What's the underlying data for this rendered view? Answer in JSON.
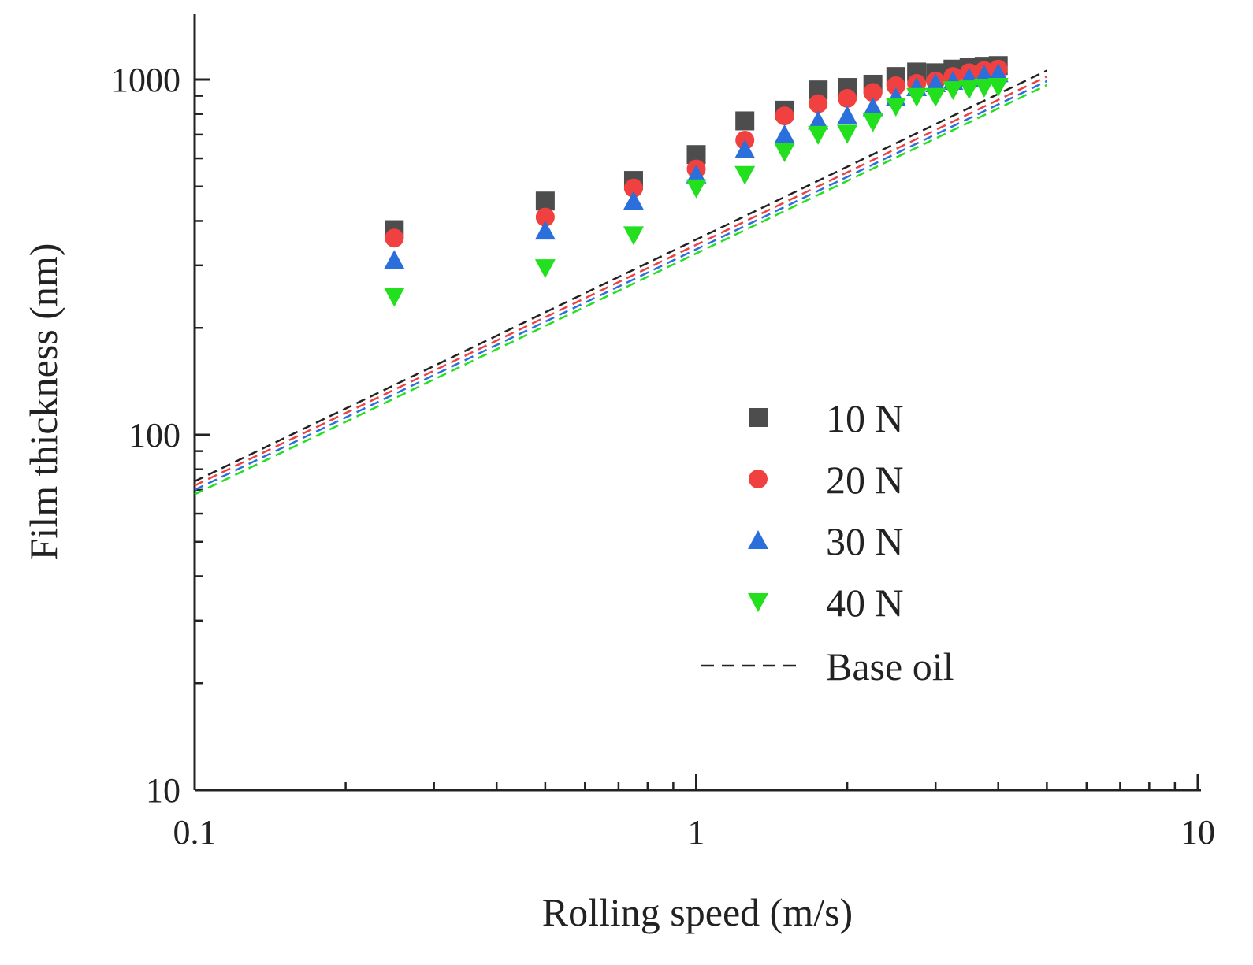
{
  "chart_data": {
    "type": "scatter",
    "xscale": "log",
    "yscale": "log",
    "xlabel": "Rolling speed (m/s)",
    "ylabel": "Film thickness (nm)",
    "xlim": [
      0.1,
      10
    ],
    "ylim": [
      10,
      1600
    ],
    "xticks": [
      {
        "value": 0.1,
        "label": "0.1"
      },
      {
        "value": 1,
        "label": "1"
      },
      {
        "value": 10,
        "label": "10"
      }
    ],
    "yticks": [
      {
        "value": 10,
        "label": "10"
      },
      {
        "value": 100,
        "label": "100"
      },
      {
        "value": 1000,
        "label": "1000"
      }
    ],
    "legend_position": "center-right",
    "series": [
      {
        "name": "10 N",
        "marker": "square",
        "color": "#4d4d4d",
        "x": [
          0.25,
          0.5,
          0.75,
          1.0,
          1.25,
          1.5,
          1.75,
          2.0,
          2.25,
          2.5,
          2.75,
          3.0,
          3.25,
          3.5,
          3.75,
          4.0
        ],
        "y": [
          378,
          455,
          520,
          615,
          765,
          820,
          935,
          950,
          970,
          1020,
          1050,
          1045,
          1070,
          1080,
          1090,
          1095
        ]
      },
      {
        "name": "20 N",
        "marker": "circle",
        "color": "#f04040",
        "x": [
          0.25,
          0.5,
          0.75,
          1.0,
          1.25,
          1.5,
          1.75,
          2.0,
          2.25,
          2.5,
          2.75,
          3.0,
          3.25,
          3.5,
          3.75,
          4.0
        ],
        "y": [
          358,
          410,
          495,
          560,
          675,
          790,
          855,
          885,
          920,
          960,
          975,
          990,
          1020,
          1045,
          1060,
          1070
        ]
      },
      {
        "name": "30 N",
        "marker": "triangle-up",
        "color": "#2a6fdc",
        "x": [
          0.25,
          0.5,
          0.75,
          1.0,
          1.25,
          1.5,
          1.75,
          2.0,
          2.25,
          2.5,
          2.75,
          3.0,
          3.25,
          3.5,
          3.75,
          4.0
        ],
        "y": [
          310,
          375,
          455,
          540,
          635,
          700,
          765,
          790,
          835,
          890,
          950,
          975,
          990,
          1010,
          1030,
          1040
        ]
      },
      {
        "name": "40 N",
        "marker": "triangle-down",
        "color": "#22e01e",
        "x": [
          0.25,
          0.5,
          0.75,
          1.0,
          1.25,
          1.5,
          1.75,
          2.0,
          2.25,
          2.5,
          2.75,
          3.0,
          3.25,
          3.5,
          3.75,
          4.0
        ],
        "y": [
          245,
          295,
          365,
          495,
          540,
          625,
          700,
          705,
          760,
          840,
          895,
          895,
          935,
          940,
          950,
          955
        ]
      },
      {
        "name": "Base oil",
        "type": "line",
        "dash": true,
        "lines": [
          {
            "color": "#222222",
            "x": [
              0.1,
              5.0
            ],
            "y": [
              74,
              1060
            ]
          },
          {
            "color": "#f04040",
            "x": [
              0.1,
              5.0
            ],
            "y": [
              72,
              1020
            ]
          },
          {
            "color": "#2a6fdc",
            "x": [
              0.1,
              5.0
            ],
            "y": [
              70,
              990
            ]
          },
          {
            "color": "#22e01e",
            "x": [
              0.1,
              5.0
            ],
            "y": [
              68,
              965
            ]
          }
        ]
      }
    ]
  }
}
